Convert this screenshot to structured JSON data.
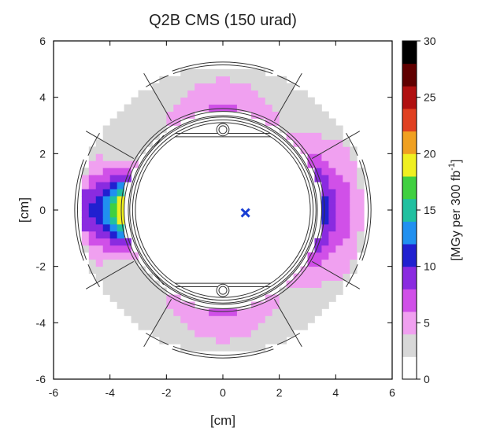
{
  "chart_data": {
    "type": "heatmap",
    "title": "Q2B CMS (150 urad)",
    "xlabel": "[cm]",
    "ylabel": "[cm]",
    "xlim": [
      -6,
      6
    ],
    "ylim": [
      -6,
      6
    ],
    "xticks": [
      "-6",
      "-4",
      "-2",
      "0",
      "2",
      "4",
      "6"
    ],
    "yticks": [
      "-6",
      "-4",
      "-2",
      "0",
      "2",
      "4",
      "6"
    ],
    "colorbar": {
      "label": "[MGy per 300 fb",
      "label_sup": "-1",
      "label_end": "]",
      "range": [
        0,
        30
      ],
      "ticks": [
        "0",
        "5",
        "10",
        "15",
        "20",
        "25",
        "30"
      ],
      "colors": [
        "#ffffff",
        "#d8d8d8",
        "#f0a0f0",
        "#d050e8",
        "#8a2be0",
        "#2020d0",
        "#2090f0",
        "#20c0a0",
        "#40d040",
        "#f0f020",
        "#f0a020",
        "#e04020",
        "#b01010",
        "#600000",
        "#000000"
      ]
    },
    "marker": {
      "symbol": "x",
      "x": 0.8,
      "y": -0.1,
      "color": "#1a3fd4"
    },
    "dose_blobs": [
      {
        "name": "top",
        "angle_deg": 90,
        "peak": 5
      },
      {
        "name": "bottom",
        "angle_deg": -90,
        "peak": 5
      },
      {
        "name": "left",
        "angle_deg": 180,
        "peak": 21
      },
      {
        "name": "right",
        "angle_deg": 0,
        "peak": 10
      }
    ],
    "grid": false,
    "legend": "none"
  }
}
